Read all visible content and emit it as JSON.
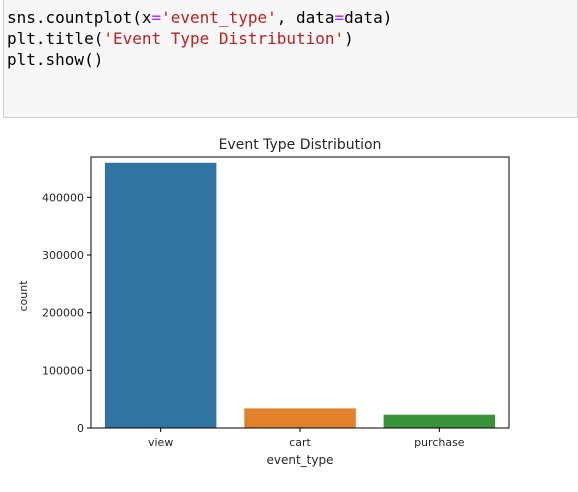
{
  "code_cell": {
    "lines": [
      [
        {
          "t": "sns.countplot(x",
          "k": "plain"
        },
        {
          "t": "=",
          "k": "op"
        },
        {
          "t": "'event_type'",
          "k": "str"
        },
        {
          "t": ", data",
          "k": "plain"
        },
        {
          "t": "=",
          "k": "op"
        },
        {
          "t": "data)",
          "k": "plain"
        }
      ],
      [
        {
          "t": "plt.title(",
          "k": "plain"
        },
        {
          "t": "'Event Type Distribution'",
          "k": "str"
        },
        {
          "t": ")",
          "k": "plain"
        }
      ],
      [
        {
          "t": "plt.show()",
          "k": "plain"
        }
      ]
    ]
  },
  "chart_data": {
    "type": "bar",
    "title": "Event Type Distribution",
    "xlabel": "event_type",
    "ylabel": "count",
    "categories": [
      "view",
      "cart",
      "purchase"
    ],
    "values": [
      460000,
      34000,
      23000
    ],
    "colors": [
      "#3274a1",
      "#e1812c",
      "#3a923a"
    ],
    "ylim": [
      0,
      470000
    ],
    "yticks": [
      0,
      100000,
      200000,
      300000,
      400000
    ],
    "ytick_labels": [
      "0",
      "100000",
      "200000",
      "300000",
      "400000"
    ],
    "grid": false,
    "legend": "none"
  }
}
